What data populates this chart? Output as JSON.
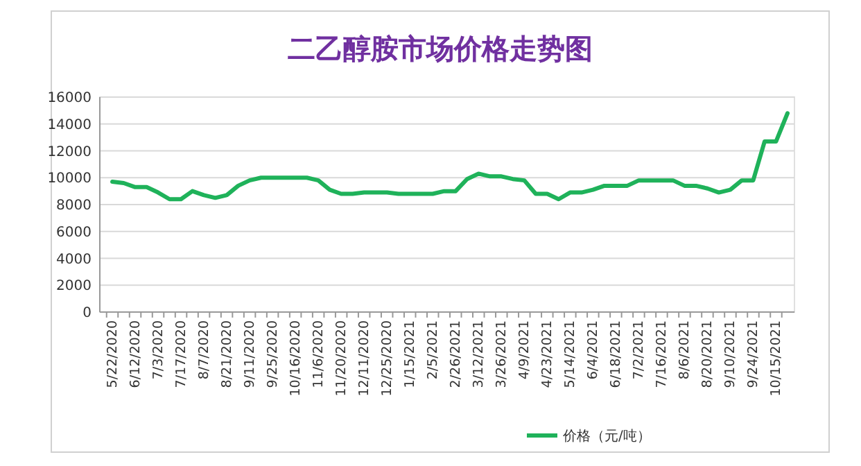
{
  "chart_data": {
    "type": "line",
    "title": "二乙醇胺市场价格走势图",
    "categories": [
      "5/22/2020",
      null,
      "6/12/2020",
      null,
      "7/3/2020",
      null,
      "7/17/2020",
      null,
      "8/7/2020",
      null,
      "8/21/2020",
      null,
      "9/11/2020",
      null,
      "9/25/2020",
      null,
      "10/16/2020",
      null,
      "11/6/2020",
      null,
      "11/20/2020",
      null,
      "12/11/2020",
      null,
      "12/25/2020",
      null,
      "1/15/2021",
      null,
      "2/5/2021",
      null,
      "2/26/2021",
      null,
      "3/12/2021",
      null,
      "3/26/2021",
      null,
      "4/9/2021",
      null,
      "4/23/2021",
      null,
      "5/14/2021",
      null,
      "6/4/2021",
      null,
      "6/18/2021",
      null,
      "7/2/2021",
      null,
      "7/16/2021",
      null,
      "8/6/2021",
      null,
      "8/20/2021",
      null,
      "9/10/2021",
      null,
      "9/24/2021",
      null,
      "10/15/2021",
      null
    ],
    "series": [
      {
        "name": "价格（元/吨）",
        "color": "#1fb25a",
        "values": [
          9700,
          9600,
          9300,
          9300,
          8900,
          8400,
          8400,
          9000,
          8700,
          8500,
          8700,
          9400,
          9800,
          10000,
          10000,
          10000,
          10000,
          10000,
          9800,
          9100,
          8800,
          8800,
          8900,
          8900,
          8900,
          8800,
          8800,
          8800,
          8800,
          9000,
          9000,
          9900,
          10300,
          10100,
          10100,
          9900,
          9800,
          8800,
          8800,
          8400,
          8900,
          8900,
          9100,
          9400,
          9400,
          9400,
          9800,
          9800,
          9800,
          9800,
          9400,
          9400,
          9200,
          8900,
          9100,
          9800,
          9800,
          12700,
          12700,
          14800
        ]
      }
    ],
    "ylim": [
      0,
      16000
    ],
    "yticks": [
      0,
      2000,
      4000,
      6000,
      8000,
      10000,
      12000,
      14000,
      16000
    ],
    "grid": "y",
    "legend": "bottom",
    "marker": "none",
    "line_style": "solid"
  }
}
